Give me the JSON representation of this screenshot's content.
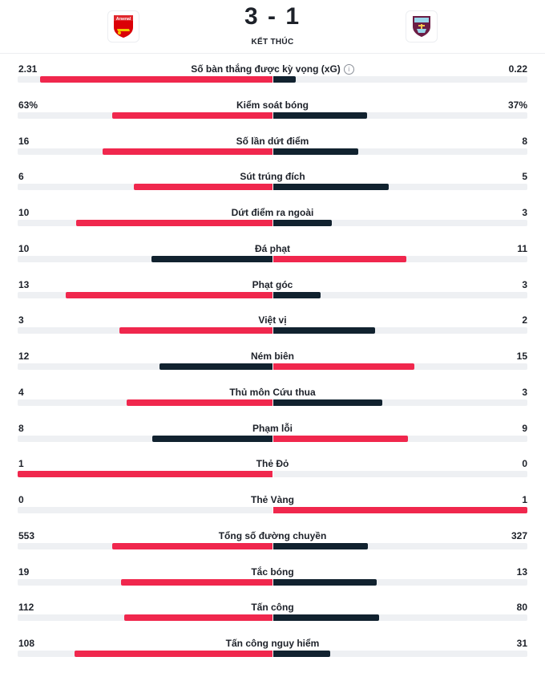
{
  "match": {
    "score": "3 - 1",
    "status": "KẾT THÚC",
    "home_logo_text": "Arsenal",
    "home_icon": "arsenal-crest-icon",
    "away_icon": "burnley-crest-icon"
  },
  "colors": {
    "leader": "#f0274d",
    "trailer": "#11222f",
    "track": "#eef0f3"
  },
  "stats": [
    {
      "label": "Số bàn thắng được kỳ vọng (xG)",
      "home": "2.31",
      "away": "0.22",
      "home_share": 0.913,
      "away_share": 0.087,
      "info": true
    },
    {
      "label": "Kiểm soát bóng",
      "home": "63%",
      "away": "37%",
      "home_share": 0.63,
      "away_share": 0.37
    },
    {
      "label": "Số lần dứt điểm",
      "home": "16",
      "away": "8",
      "home_share": 0.667,
      "away_share": 0.333
    },
    {
      "label": "Sút trúng đích",
      "home": "6",
      "away": "5",
      "home_share": 0.545,
      "away_share": 0.455
    },
    {
      "label": "Dứt điểm ra ngoài",
      "home": "10",
      "away": "3",
      "home_share": 0.769,
      "away_share": 0.231
    },
    {
      "label": "Đá phạt",
      "home": "10",
      "away": "11",
      "home_share": 0.476,
      "away_share": 0.524
    },
    {
      "label": "Phạt góc",
      "home": "13",
      "away": "3",
      "home_share": 0.8125,
      "away_share": 0.1875
    },
    {
      "label": "Việt vị",
      "home": "3",
      "away": "2",
      "home_share": 0.6,
      "away_share": 0.4
    },
    {
      "label": "Ném biên",
      "home": "12",
      "away": "15",
      "home_share": 0.444,
      "away_share": 0.556
    },
    {
      "label": "Thủ môn Cứu thua",
      "home": "4",
      "away": "3",
      "home_share": 0.571,
      "away_share": 0.429
    },
    {
      "label": "Phạm lỗi",
      "home": "8",
      "away": "9",
      "home_share": 0.471,
      "away_share": 0.529
    },
    {
      "label": "Thẻ Đỏ",
      "home": "1",
      "away": "0",
      "home_share": 1.0,
      "away_share": 0.0
    },
    {
      "label": "Thẻ Vàng",
      "home": "0",
      "away": "1",
      "home_share": 0.0,
      "away_share": 1.0
    },
    {
      "label": "Tổng số đường chuyền",
      "home": "553",
      "away": "327",
      "home_share": 0.628,
      "away_share": 0.372
    },
    {
      "label": "Tắc bóng",
      "home": "19",
      "away": "13",
      "home_share": 0.594,
      "away_share": 0.406
    },
    {
      "label": "Tấn công",
      "home": "112",
      "away": "80",
      "home_share": 0.583,
      "away_share": 0.417
    },
    {
      "label": "Tấn công nguy hiểm",
      "home": "108",
      "away": "31",
      "home_share": 0.777,
      "away_share": 0.223
    }
  ]
}
